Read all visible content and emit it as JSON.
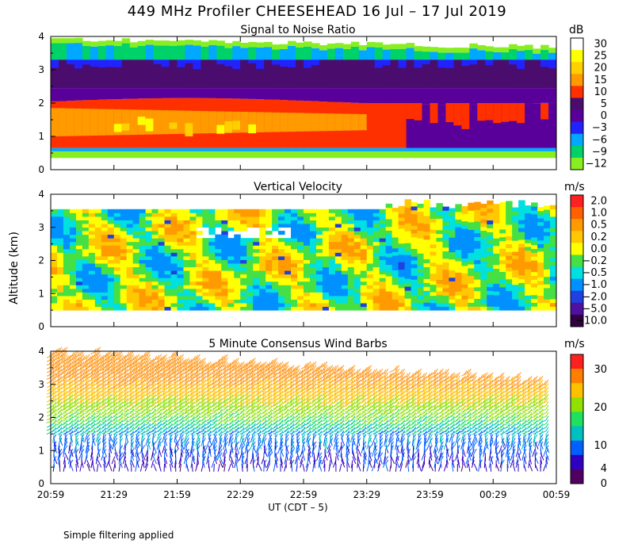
{
  "title": "449 MHz Profiler CHEESEHEAD 16 Jul – 17 Jul 2019",
  "ylabel": "Altitude (km)",
  "xlabel": "UT  (CDT – 5)",
  "note": "Simple filtering applied",
  "chart_data": [
    {
      "type": "heatmap",
      "title": "Signal to Noise Ratio",
      "unit": "dB",
      "x": [
        "20:59",
        "21:29",
        "21:59",
        "22:29",
        "22:59",
        "23:29",
        "23:59",
        "00:29",
        "00:59"
      ],
      "y_ticks": [
        "0",
        "1",
        "2",
        "3",
        "4"
      ],
      "ylim": [
        0,
        4
      ],
      "colorbar": {
        "labels": [
          "30",
          "25",
          "20",
          "15",
          "10",
          "5",
          "0",
          "−3",
          "−6",
          "−9",
          "−12"
        ],
        "colors": [
          "#ffffff",
          "#ffff00",
          "#ffd000",
          "#ff9a00",
          "#ff3000",
          "#4a0d6e",
          "#5a009a",
          "#2222ff",
          "#00a8ff",
          "#00d26a",
          "#88ee22"
        ]
      },
      "layers": [
        {
          "name": "near-surface",
          "y0": 0.4,
          "y1": 0.6,
          "color": "#00a8ff"
        },
        {
          "name": "lower band",
          "y0": 0.6,
          "y1": 2.1,
          "color": "#ff3000"
        },
        {
          "name": "peak core",
          "y0": 1.0,
          "y1": 1.9,
          "color": "#ff9a00"
        },
        {
          "name": "inversion",
          "y0": 2.1,
          "y1": 2.5,
          "color": "#5a009a"
        },
        {
          "name": "upper layer",
          "y0": 2.5,
          "y1": 3.3,
          "color": "#4a0d6e"
        },
        {
          "name": "blue cells",
          "y0": 3.0,
          "y1": 3.4,
          "color": "#2222ff"
        },
        {
          "name": "top edge",
          "y0": 3.3,
          "y1": 3.7,
          "color": "#00d26a"
        },
        {
          "name": "fringe",
          "y0": 3.6,
          "y1": 4.0,
          "color": "#88ee22"
        }
      ]
    },
    {
      "type": "heatmap",
      "title": "Vertical Velocity",
      "unit": "m/s",
      "x": [
        "20:59",
        "21:29",
        "21:59",
        "22:29",
        "22:59",
        "23:29",
        "23:59",
        "00:29",
        "00:59"
      ],
      "y_ticks": [
        "0",
        "1",
        "2",
        "3",
        "4"
      ],
      "ylim": [
        0,
        4
      ],
      "colorbar": {
        "labels": [
          "2.0",
          "1.0",
          "0.5",
          "0.2",
          "0.0",
          "−0.2",
          "−0.5",
          "−1.0",
          "−2.0",
          "−5.0",
          "−10.0"
        ],
        "colors": [
          "#ff2020",
          "#ff6000",
          "#ff9a00",
          "#ffc800",
          "#ffff00",
          "#44e044",
          "#00e0e0",
          "#0090ff",
          "#2040e0",
          "#5010a0",
          "#300040"
        ]
      },
      "data_range_km": [
        0.5,
        3.6
      ]
    },
    {
      "type": "wind_barbs",
      "title": "5 Minute Consensus Wind Barbs",
      "unit": "m/s",
      "x": [
        "20:59",
        "21:29",
        "21:59",
        "22:29",
        "22:59",
        "23:29",
        "23:59",
        "00:29",
        "00:59"
      ],
      "y_ticks": [
        "0",
        "1",
        "2",
        "3",
        "4"
      ],
      "ylim": [
        0,
        4
      ],
      "colorbar": {
        "labels": [
          "30",
          "20",
          "10",
          "4",
          "0"
        ],
        "levels": [
          30,
          20,
          10,
          4,
          0
        ],
        "colors": [
          "#ff2020",
          "#ff8000",
          "#ffc000",
          "#90e000",
          "#20e060",
          "#00c0c0",
          "#0060ff",
          "#3000c0",
          "#500060"
        ]
      },
      "profile_speed_ms": [
        {
          "alt_km": 0.6,
          "speed": 3
        },
        {
          "alt_km": 1.0,
          "speed": 4
        },
        {
          "alt_km": 1.5,
          "speed": 6
        },
        {
          "alt_km": 2.0,
          "speed": 10
        },
        {
          "alt_km": 2.5,
          "speed": 14
        },
        {
          "alt_km": 3.0,
          "speed": 18
        },
        {
          "alt_km": 3.5,
          "speed": 21
        },
        {
          "alt_km": 4.0,
          "speed": 22
        }
      ]
    }
  ]
}
